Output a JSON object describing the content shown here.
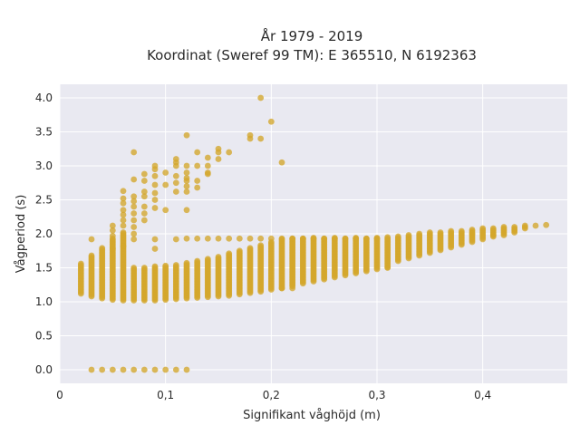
{
  "chart_data": {
    "type": "scatter",
    "title_line1": "År 1979 - 2019",
    "title_line2": "Koordinat (Sweref 99 TM): E 365510, N 6192363",
    "xlabel": "Signifikant våghöjd (m)",
    "ylabel": "Vågperiod (s)",
    "xlim": [
      0,
      0.48
    ],
    "ylim": [
      -0.2,
      4.2
    ],
    "x_ticks": [
      0,
      0.1,
      0.2,
      0.3,
      0.4
    ],
    "x_tick_labels": [
      "0",
      "0,1",
      "0,2",
      "0,3",
      "0,4"
    ],
    "y_ticks": [
      0,
      0.5,
      1,
      1.5,
      2,
      2.5,
      3,
      3.5,
      4
    ],
    "y_tick_labels": [
      "0.0",
      "0.5",
      "1.0",
      "1.5",
      "2.0",
      "2.5",
      "3.0",
      "3.5",
      "4.0"
    ],
    "grid": true,
    "colors": {
      "marker": "#d4a72c",
      "plot_bg": "#e9e9f1",
      "grid": "#ffffff"
    },
    "band_ranges": [
      [
        0.02,
        1.12,
        1.56
      ],
      [
        0.03,
        1.08,
        1.68
      ],
      [
        0.04,
        1.05,
        1.8
      ],
      [
        0.05,
        1.03,
        1.94
      ],
      [
        0.06,
        1.02,
        2.02
      ],
      [
        0.07,
        1.02,
        1.5
      ],
      [
        0.08,
        1.02,
        1.5
      ],
      [
        0.09,
        1.02,
        1.52
      ],
      [
        0.1,
        1.03,
        1.53
      ],
      [
        0.11,
        1.04,
        1.55
      ],
      [
        0.12,
        1.05,
        1.57
      ],
      [
        0.13,
        1.06,
        1.6
      ],
      [
        0.14,
        1.07,
        1.63
      ],
      [
        0.15,
        1.08,
        1.67
      ],
      [
        0.16,
        1.09,
        1.71
      ],
      [
        0.17,
        1.11,
        1.75
      ],
      [
        0.18,
        1.13,
        1.79
      ],
      [
        0.19,
        1.15,
        1.84
      ],
      [
        0.2,
        1.18,
        1.88
      ],
      [
        0.21,
        1.2,
        1.92
      ],
      [
        0.22,
        1.23,
        1.94
      ],
      [
        0.23,
        1.27,
        1.94
      ],
      [
        0.24,
        1.3,
        1.94
      ],
      [
        0.25,
        1.33,
        1.94
      ],
      [
        0.26,
        1.36,
        1.94
      ],
      [
        0.27,
        1.39,
        1.94
      ],
      [
        0.28,
        1.42,
        1.94
      ],
      [
        0.29,
        1.45,
        1.94
      ],
      [
        0.3,
        1.48,
        1.94
      ],
      [
        0.31,
        1.51,
        1.96
      ],
      [
        0.32,
        1.6,
        1.97
      ],
      [
        0.33,
        1.64,
        1.99
      ],
      [
        0.34,
        1.68,
        2.0
      ],
      [
        0.35,
        1.72,
        2.02
      ],
      [
        0.36,
        1.76,
        2.03
      ],
      [
        0.37,
        1.8,
        2.04
      ],
      [
        0.38,
        1.84,
        2.05
      ],
      [
        0.39,
        1.88,
        2.06
      ],
      [
        0.4,
        1.92,
        2.08
      ],
      [
        0.41,
        1.96,
        2.09
      ],
      [
        0.42,
        1.98,
        2.1
      ],
      [
        0.43,
        2.02,
        2.1
      ],
      [
        0.44,
        2.08,
        2.12
      ],
      [
        0.45,
        2.12,
        2.13
      ],
      [
        0.46,
        2.13,
        2.14
      ]
    ],
    "band_step": 0.02,
    "plateau": {
      "y": 1.93,
      "x_values": [
        0.12,
        0.13,
        0.14,
        0.15,
        0.16,
        0.17,
        0.18,
        0.19,
        0.2,
        0.21,
        0.22,
        0.23,
        0.24,
        0.25,
        0.26,
        0.27,
        0.28,
        0.29,
        0.3
      ]
    },
    "zero_line": {
      "y": 0,
      "x_values": [
        0.03,
        0.04,
        0.05,
        0.06,
        0.07,
        0.08,
        0.09,
        0.1,
        0.11,
        0.12
      ]
    },
    "points": [
      [
        0.03,
        1.92
      ],
      [
        0.05,
        1.97
      ],
      [
        0.05,
        2.05
      ],
      [
        0.05,
        2.12
      ],
      [
        0.06,
        2.12
      ],
      [
        0.06,
        2.2
      ],
      [
        0.06,
        2.28
      ],
      [
        0.06,
        2.35
      ],
      [
        0.06,
        2.45
      ],
      [
        0.06,
        2.52
      ],
      [
        0.06,
        2.63
      ],
      [
        0.06,
        1.82
      ],
      [
        0.05,
        1.78
      ],
      [
        0.07,
        3.2
      ],
      [
        0.07,
        2.8
      ],
      [
        0.07,
        2.55
      ],
      [
        0.07,
        2.48
      ],
      [
        0.07,
        2.4
      ],
      [
        0.07,
        2.3
      ],
      [
        0.07,
        2.2
      ],
      [
        0.07,
        2.1
      ],
      [
        0.07,
        2.0
      ],
      [
        0.07,
        1.92
      ],
      [
        0.08,
        2.88
      ],
      [
        0.08,
        2.78
      ],
      [
        0.08,
        2.62
      ],
      [
        0.08,
        2.55
      ],
      [
        0.08,
        2.4
      ],
      [
        0.08,
        2.3
      ],
      [
        0.08,
        2.2
      ],
      [
        0.09,
        3.0
      ],
      [
        0.09,
        2.95
      ],
      [
        0.09,
        2.85
      ],
      [
        0.09,
        2.72
      ],
      [
        0.09,
        2.6
      ],
      [
        0.09,
        2.5
      ],
      [
        0.09,
        2.38
      ],
      [
        0.09,
        1.92
      ],
      [
        0.09,
        1.78
      ],
      [
        0.1,
        2.9
      ],
      [
        0.1,
        2.72
      ],
      [
        0.1,
        2.35
      ],
      [
        0.11,
        3.1
      ],
      [
        0.11,
        3.05
      ],
      [
        0.11,
        3.0
      ],
      [
        0.11,
        2.85
      ],
      [
        0.11,
        2.75
      ],
      [
        0.11,
        2.62
      ],
      [
        0.11,
        1.92
      ],
      [
        0.12,
        3.45
      ],
      [
        0.12,
        3.0
      ],
      [
        0.12,
        2.9
      ],
      [
        0.12,
        2.82
      ],
      [
        0.12,
        2.78
      ],
      [
        0.12,
        2.7
      ],
      [
        0.12,
        2.62
      ],
      [
        0.12,
        2.35
      ],
      [
        0.13,
        3.2
      ],
      [
        0.13,
        3.0
      ],
      [
        0.13,
        2.78
      ],
      [
        0.13,
        2.68
      ],
      [
        0.14,
        3.12
      ],
      [
        0.14,
        3.0
      ],
      [
        0.14,
        2.9
      ],
      [
        0.14,
        2.88
      ],
      [
        0.15,
        3.25
      ],
      [
        0.15,
        3.2
      ],
      [
        0.15,
        3.1
      ],
      [
        0.16,
        3.2
      ],
      [
        0.18,
        3.45
      ],
      [
        0.18,
        3.4
      ],
      [
        0.19,
        4.0
      ],
      [
        0.19,
        3.4
      ],
      [
        0.2,
        3.65
      ],
      [
        0.21,
        3.05
      ],
      [
        0.21,
        1.2
      ],
      [
        0.22,
        1.2
      ],
      [
        0.31,
        1.5
      ],
      [
        0.39,
        2.0
      ],
      [
        0.41,
        1.98
      ]
    ]
  }
}
